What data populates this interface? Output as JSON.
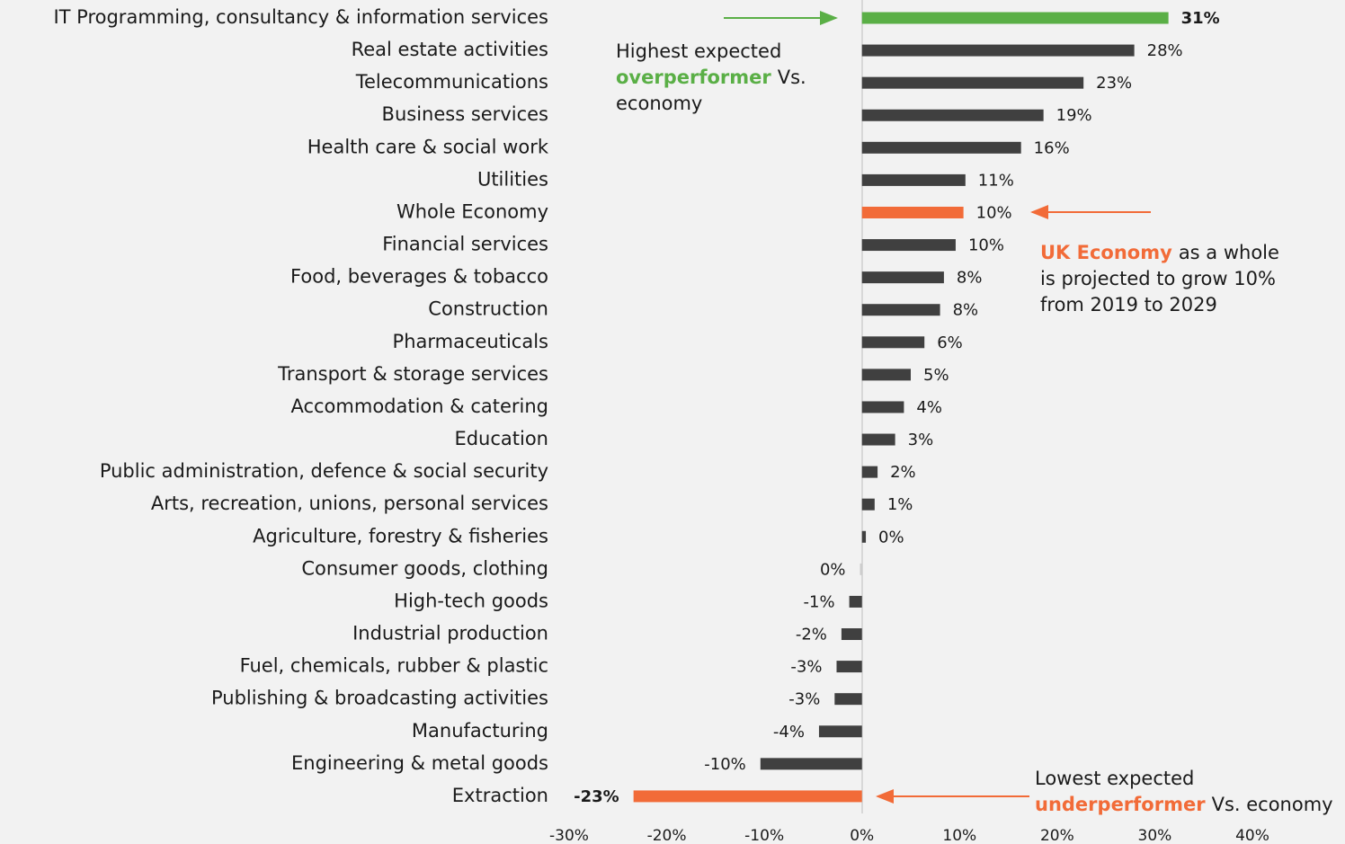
{
  "chart_data": {
    "type": "hbar",
    "categories": [
      "IT Programming, consultancy & information services",
      "Real estate activities",
      "Telecommunications",
      "Business services",
      "Health care & social work",
      "Utilities",
      "Whole Economy",
      "Financial services",
      "Food, beverages & tobacco",
      "Construction",
      "Pharmaceuticals",
      "Transport & storage services",
      "Accommodation & catering",
      "Education",
      "Public administration, defence & social security",
      "Arts, recreation, unions, personal services",
      "Agriculture, forestry & fisheries",
      "Consumer goods, clothing",
      "High-tech goods",
      "Industrial production",
      "Fuel, chemicals, rubber & plastic",
      "Publishing & broadcasting activities",
      "Manufacturing",
      "Engineering & metal goods",
      "Extraction"
    ],
    "values": [
      31.4,
      27.9,
      22.7,
      18.6,
      16.3,
      10.6,
      10.4,
      9.6,
      8.4,
      8.0,
      6.4,
      5.0,
      4.3,
      3.4,
      1.6,
      1.3,
      0.4,
      -0.2,
      -1.3,
      -2.1,
      -2.6,
      -2.8,
      -4.4,
      -10.4,
      -23.4
    ],
    "value_labels": [
      "31%",
      "28%",
      "23%",
      "19%",
      "16%",
      "11%",
      "10%",
      "10%",
      "8%",
      "8%",
      "6%",
      "5%",
      "4%",
      "3%",
      "2%",
      "1%",
      "0%",
      "0%",
      "-1%",
      "-2%",
      "-3%",
      "-3%",
      "-4%",
      "-10%",
      "-23%"
    ],
    "colors": [
      "#5aaf46",
      "#404040",
      "#404040",
      "#404040",
      "#404040",
      "#404040",
      "#f26b38",
      "#404040",
      "#404040",
      "#404040",
      "#404040",
      "#404040",
      "#404040",
      "#404040",
      "#404040",
      "#404040",
      "#404040",
      "#cccccc",
      "#404040",
      "#404040",
      "#404040",
      "#404040",
      "#404040",
      "#404040",
      "#f26b38"
    ],
    "bold_value_labels": [
      true,
      false,
      false,
      false,
      false,
      false,
      false,
      false,
      false,
      false,
      false,
      false,
      false,
      false,
      false,
      false,
      false,
      false,
      false,
      false,
      false,
      false,
      false,
      false,
      true
    ],
    "xlim": [
      -30,
      40
    ],
    "xticks": [
      {
        "value": -30,
        "label": "-30%"
      },
      {
        "value": -20,
        "label": "-20%"
      },
      {
        "value": -10,
        "label": "-10%"
      },
      {
        "value": 0,
        "label": "0%"
      },
      {
        "value": 10,
        "label": "10%"
      },
      {
        "value": 20,
        "label": "20%"
      },
      {
        "value": 30,
        "label": "30%"
      },
      {
        "value": 40,
        "label": "40%"
      }
    ],
    "annotations": [
      {
        "color": "#5aaf46",
        "lines": [
          [
            {
              "text": "Highest expected"
            }
          ],
          [
            {
              "text": "overperformer",
              "bold": true
            },
            {
              "text": "Vs."
            }
          ],
          [
            {
              "text": "economy"
            }
          ]
        ]
      },
      {
        "color": "#f26b38",
        "lines": [
          [
            {
              "text": "UK Economy",
              "bold": true
            },
            {
              "text": "as a whole"
            }
          ],
          [
            {
              "text": "is projected to grow 10%"
            }
          ],
          [
            {
              "text": "from 2019 to 2029"
            }
          ]
        ]
      },
      {
        "color": "#f26b38",
        "lines": [
          [
            {
              "text": "Lowest expected"
            }
          ],
          [
            {
              "text": "underperformer",
              "bold": true
            },
            {
              "text": "Vs. economy"
            }
          ]
        ]
      }
    ]
  }
}
